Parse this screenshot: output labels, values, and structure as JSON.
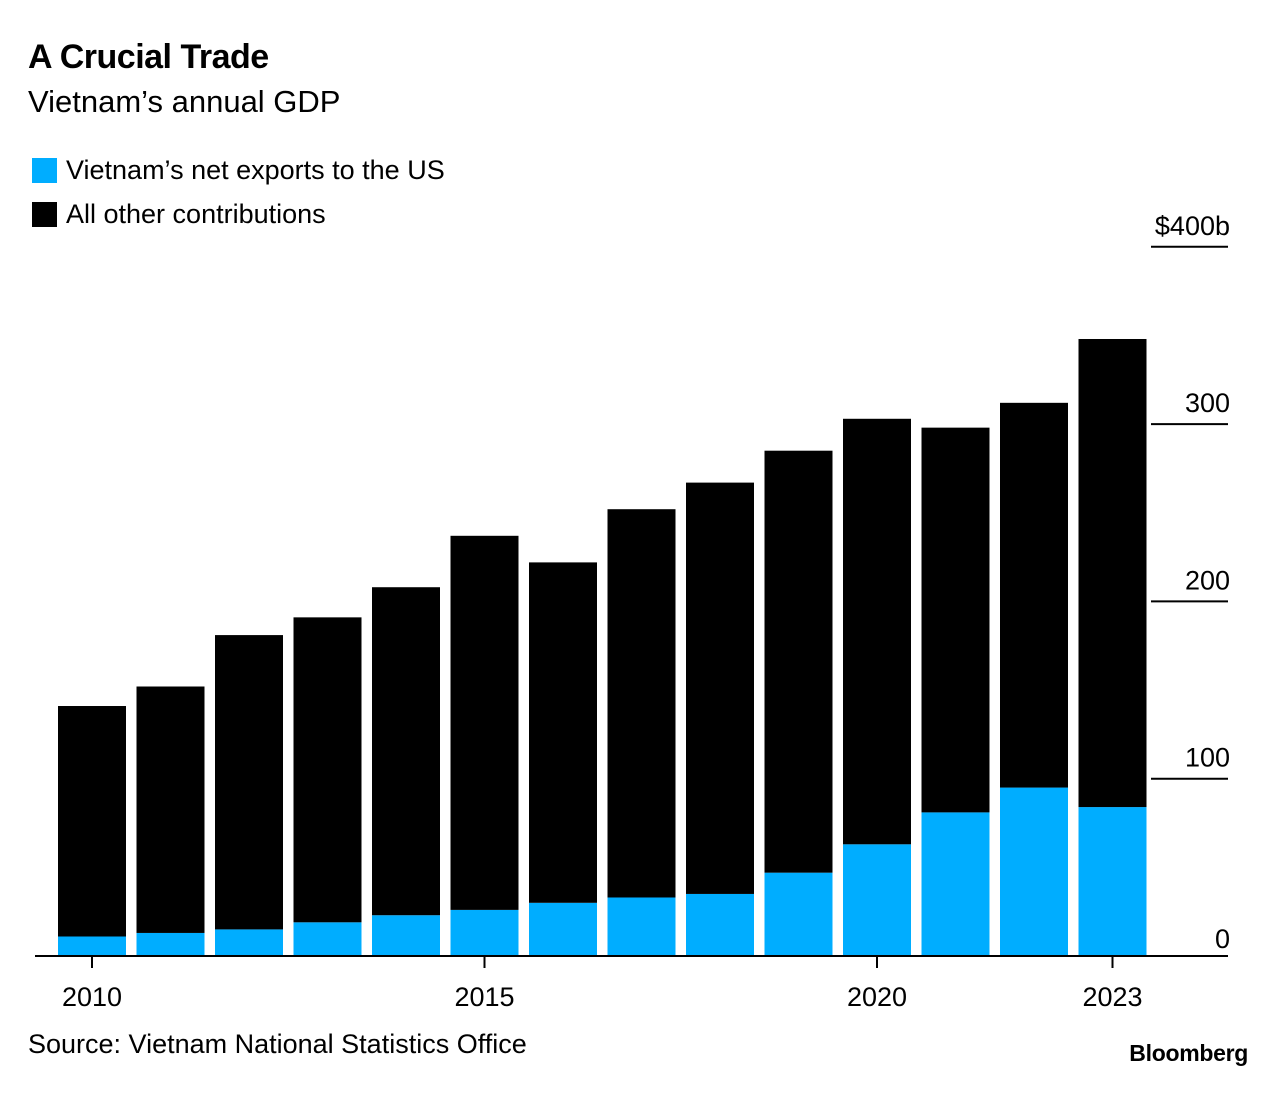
{
  "header": {
    "title": "A Crucial Trade",
    "subtitle": "Vietnam’s annual GDP"
  },
  "legend": [
    {
      "label": "Vietnam’s net exports to the US",
      "color": "#00adff"
    },
    {
      "label": "All other contributions",
      "color": "#000000"
    }
  ],
  "footer": {
    "source": "Source: Vietnam National Statistics Office",
    "brand": "Bloomberg"
  },
  "chart_data": {
    "type": "bar",
    "stacked": true,
    "title": "A Crucial Trade",
    "subtitle": "Vietnam’s annual GDP",
    "categories": [
      "2010",
      "2011",
      "2012",
      "2013",
      "2014",
      "2015",
      "2016",
      "2017",
      "2018",
      "2019",
      "2020",
      "2021",
      "2022",
      "2023"
    ],
    "series": [
      {
        "name": "Vietnam’s net exports to the US",
        "color": "#00adff",
        "values": [
          11,
          13,
          15,
          19,
          23,
          26,
          30,
          33,
          35,
          47,
          63,
          81,
          95,
          84
        ]
      },
      {
        "name": "All other contributions",
        "color": "#000000",
        "values": [
          130,
          139,
          166,
          172,
          185,
          211,
          192,
          219,
          232,
          238,
          240,
          217,
          217,
          264
        ]
      }
    ],
    "x_tick_labels": [
      "2010",
      "2015",
      "2020",
      "2023"
    ],
    "y_ticks": [
      0,
      100,
      200,
      300,
      400
    ],
    "y_tick_labels": [
      "0",
      "100",
      "200",
      "300",
      "$400b"
    ],
    "ylim": [
      0,
      430
    ],
    "y_axis_side": "right",
    "legend_position": "top-left",
    "grid": false
  }
}
